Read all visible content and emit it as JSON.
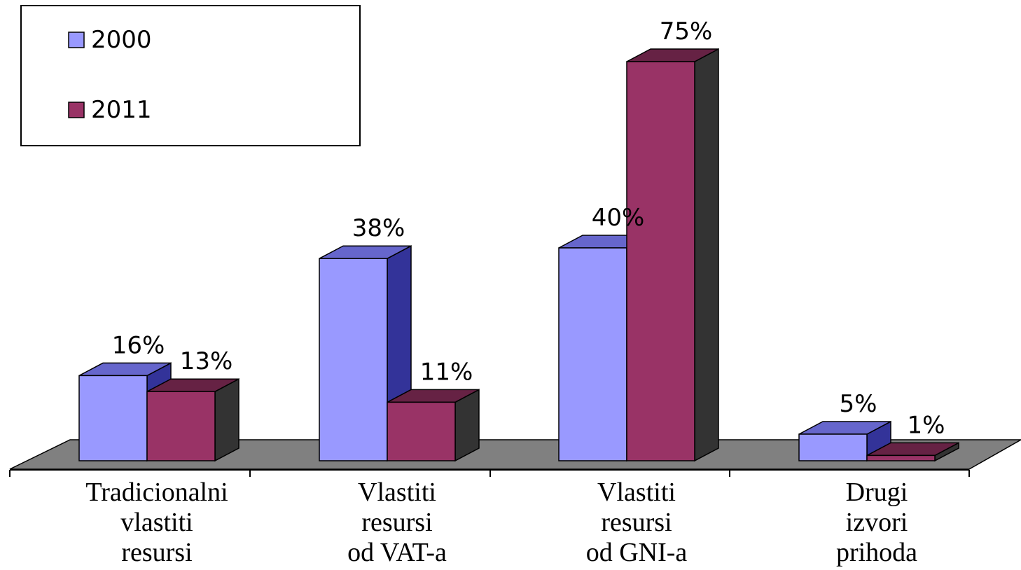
{
  "chart_data": {
    "type": "bar",
    "categories": [
      [
        "Tradicionalni",
        "vlastiti",
        "resursi"
      ],
      [
        "Vlastiti",
        "resursi",
        "od VAT-a"
      ],
      [
        "Vlastiti",
        "resursi",
        "od GNI-a"
      ],
      [
        "Drugi",
        "izvori",
        "prihoda"
      ]
    ],
    "series": [
      {
        "name": "2000",
        "values": [
          16,
          38,
          40,
          5
        ],
        "labels": [
          "16%",
          "38%",
          "40%",
          "5%"
        ],
        "color": "#9999ff",
        "side_color": "#333399",
        "top_color": "#6666cc"
      },
      {
        "name": "2011",
        "values": [
          13,
          11,
          75,
          1
        ],
        "labels": [
          "13%",
          "11%",
          "75%",
          "1%"
        ],
        "color": "#993366",
        "side_color": "#333333",
        "top_color": "#662244"
      }
    ],
    "ylim": [
      0,
      80
    ],
    "legend_position": "top-left",
    "grid": false,
    "floor_color": "#808080"
  }
}
